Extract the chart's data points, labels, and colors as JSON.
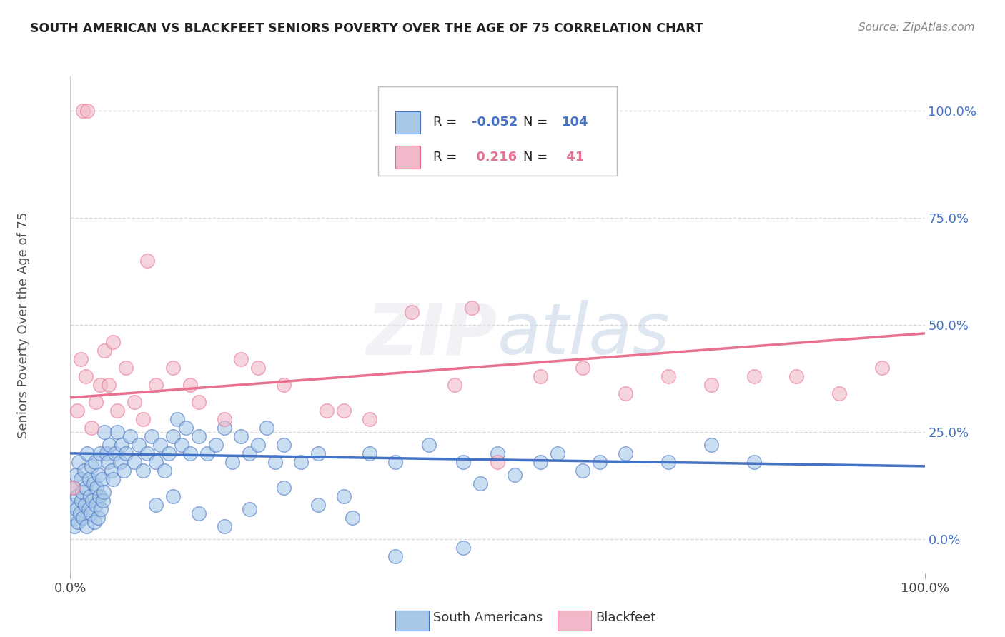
{
  "title": "SOUTH AMERICAN VS BLACKFEET SENIORS POVERTY OVER THE AGE OF 75 CORRELATION CHART",
  "source": "Source: ZipAtlas.com",
  "ylabel": "Seniors Poverty Over the Age of 75",
  "watermark": "ZIPatlas",
  "blue_color": "#a8c8e8",
  "pink_color": "#f0b8c8",
  "blue_line_color": "#4472c4",
  "pink_line_color": "#e87090",
  "grid_color": "#d0d0d0",
  "sa_trend_x0": 0.0,
  "sa_trend_x1": 100.0,
  "sa_trend_y0": 20.0,
  "sa_trend_y1": 17.0,
  "bf_trend_x0": 0.0,
  "bf_trend_x1": 100.0,
  "bf_trend_y0": 33.0,
  "bf_trend_y1": 48.0,
  "ymin": -8.0,
  "ymax": 108.0,
  "xmin": 0.0,
  "xmax": 100.0,
  "south_american_x": [
    0.2,
    0.3,
    0.4,
    0.5,
    0.6,
    0.7,
    0.8,
    0.9,
    1.0,
    1.1,
    1.2,
    1.3,
    1.4,
    1.5,
    1.6,
    1.7,
    1.8,
    1.9,
    2.0,
    2.1,
    2.2,
    2.3,
    2.4,
    2.5,
    2.6,
    2.7,
    2.8,
    2.9,
    3.0,
    3.1,
    3.2,
    3.3,
    3.4,
    3.5,
    3.6,
    3.7,
    3.8,
    3.9,
    4.0,
    4.2,
    4.4,
    4.6,
    4.8,
    5.0,
    5.2,
    5.5,
    5.8,
    6.0,
    6.2,
    6.5,
    7.0,
    7.5,
    8.0,
    8.5,
    9.0,
    9.5,
    10.0,
    10.5,
    11.0,
    11.5,
    12.0,
    12.5,
    13.0,
    13.5,
    14.0,
    15.0,
    16.0,
    17.0,
    18.0,
    19.0,
    20.0,
    21.0,
    22.0,
    23.0,
    24.0,
    25.0,
    27.0,
    29.0,
    32.0,
    35.0,
    38.0,
    42.0,
    46.0,
    50.0,
    55.0,
    60.0,
    65.0,
    70.0,
    75.0,
    80.0,
    48.0,
    52.0,
    57.0,
    62.0,
    46.0,
    38.0,
    33.0,
    29.0,
    25.0,
    21.0,
    18.0,
    15.0,
    12.0,
    10.0
  ],
  "south_american_y": [
    5.0,
    8.0,
    12.0,
    3.0,
    15.0,
    7.0,
    10.0,
    4.0,
    18.0,
    6.0,
    14.0,
    9.0,
    11.0,
    5.0,
    16.0,
    8.0,
    12.0,
    3.0,
    20.0,
    7.0,
    14.0,
    10.0,
    6.0,
    17.0,
    9.0,
    13.0,
    4.0,
    18.0,
    8.0,
    12.0,
    5.0,
    15.0,
    10.0,
    20.0,
    7.0,
    14.0,
    9.0,
    11.0,
    25.0,
    20.0,
    18.0,
    22.0,
    16.0,
    14.0,
    20.0,
    25.0,
    18.0,
    22.0,
    16.0,
    20.0,
    24.0,
    18.0,
    22.0,
    16.0,
    20.0,
    24.0,
    18.0,
    22.0,
    16.0,
    20.0,
    24.0,
    28.0,
    22.0,
    26.0,
    20.0,
    24.0,
    20.0,
    22.0,
    26.0,
    18.0,
    24.0,
    20.0,
    22.0,
    26.0,
    18.0,
    22.0,
    18.0,
    20.0,
    10.0,
    20.0,
    18.0,
    22.0,
    18.0,
    20.0,
    18.0,
    16.0,
    20.0,
    18.0,
    22.0,
    18.0,
    13.0,
    15.0,
    20.0,
    18.0,
    -2.0,
    -4.0,
    5.0,
    8.0,
    12.0,
    7.0,
    3.0,
    6.0,
    10.0,
    8.0
  ],
  "blackfeet_x": [
    0.3,
    0.8,
    1.2,
    1.8,
    2.5,
    3.0,
    3.5,
    4.0,
    4.5,
    5.5,
    6.5,
    7.5,
    8.5,
    10.0,
    12.0,
    15.0,
    18.0,
    20.0,
    25.0,
    30.0,
    35.0,
    40.0,
    45.0,
    50.0,
    55.0,
    60.0,
    65.0,
    70.0,
    75.0,
    80.0,
    85.0,
    90.0,
    95.0,
    1.5,
    2.0,
    5.0,
    9.0,
    14.0,
    22.0,
    32.0,
    47.0
  ],
  "blackfeet_y": [
    12.0,
    30.0,
    42.0,
    38.0,
    26.0,
    32.0,
    36.0,
    44.0,
    36.0,
    30.0,
    40.0,
    32.0,
    28.0,
    36.0,
    40.0,
    32.0,
    28.0,
    42.0,
    36.0,
    30.0,
    28.0,
    53.0,
    36.0,
    18.0,
    38.0,
    40.0,
    34.0,
    38.0,
    36.0,
    38.0,
    38.0,
    34.0,
    40.0,
    100.0,
    100.0,
    46.0,
    65.0,
    36.0,
    40.0,
    30.0,
    54.0
  ]
}
